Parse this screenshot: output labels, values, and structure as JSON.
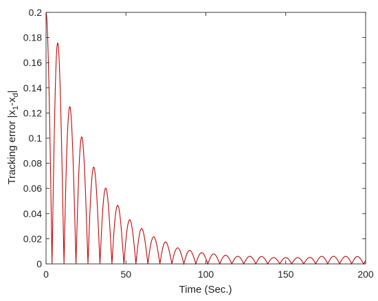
{
  "chart_data": {
    "type": "line",
    "title": "",
    "xlabel": "Time (Sec.)",
    "ylabel_parts": {
      "prefix": "Tracking error |x",
      "sub1": "1",
      "mid": "-x",
      "sub2": "d",
      "suffix": "|"
    },
    "xlim": [
      0,
      200
    ],
    "ylim": [
      0,
      0.2
    ],
    "xticks": [
      0,
      50,
      100,
      150,
      200
    ],
    "xtick_labels": [
      "0",
      "50",
      "100",
      "150",
      "200"
    ],
    "yticks": [
      0,
      0.02,
      0.04,
      0.06,
      0.08,
      0.1,
      0.12,
      0.14,
      0.16,
      0.18,
      0.2
    ],
    "ytick_labels": [
      "0",
      "0.02",
      "0.04",
      "0.06",
      "0.08",
      "0.1",
      "0.12",
      "0.14",
      "0.16",
      "0.18",
      "0.2"
    ],
    "grid": false,
    "box": true,
    "series": [
      {
        "color": "#cc0000",
        "shape": "abs-sine arches",
        "period": 7.5,
        "envelope_t": [
          0,
          6.5,
          14,
          21.5,
          29,
          36.5,
          44,
          51.5,
          59,
          66.5,
          74,
          81.5,
          89,
          96.5,
          104,
          111.5,
          119,
          126.5,
          134,
          141.5,
          149,
          156.5,
          164,
          171.5,
          179,
          186.5,
          194,
          200
        ],
        "envelope_y": [
          0.2,
          0.182,
          0.128,
          0.104,
          0.079,
          0.062,
          0.048,
          0.036,
          0.029,
          0.022,
          0.018,
          0.013,
          0.011,
          0.009,
          0.008,
          0.007,
          0.006,
          0.006,
          0.006,
          0.005,
          0.005,
          0.005,
          0.005,
          0.006,
          0.006,
          0.006,
          0.006,
          0.005
        ]
      }
    ]
  }
}
